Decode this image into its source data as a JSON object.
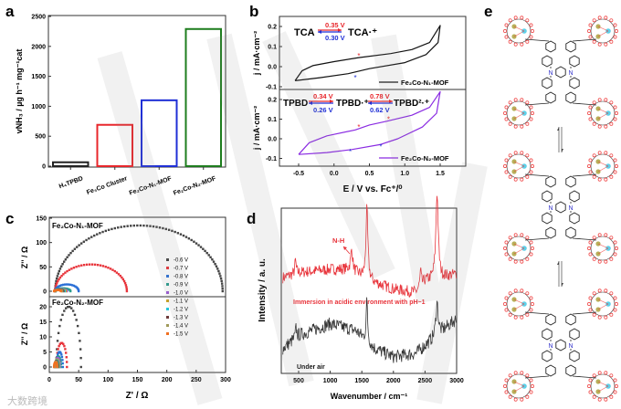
{
  "panels": {
    "a": "a",
    "b": "b",
    "c": "c",
    "d": "d",
    "e": "e"
  },
  "watermark": {
    "logo_text": "大数跨境"
  },
  "chart_data": [
    {
      "id": "a",
      "type": "bar",
      "categories": [
        "H₄TPBD",
        "Fe₃Co Cluster",
        "Fe₂Co-N₁-MOF",
        "Fe₂Co-N₂-MOF"
      ],
      "values": [
        65,
        690,
        1100,
        2290
      ],
      "colors": [
        "#222222",
        "#e8262b",
        "#1f2fd6",
        "#1e7d1e"
      ],
      "ylabel": "vNH₃ / µg h⁻¹ mg⁻¹cat",
      "ylim": [
        0,
        2500
      ],
      "yticks": [
        0,
        500,
        1000,
        1500,
        2000,
        2500
      ]
    },
    {
      "id": "b",
      "type": "line",
      "xlabel": "E / V vs. Fc⁺/⁰",
      "xlim": [
        -0.75,
        1.75
      ],
      "xticks": [
        -0.5,
        0.0,
        0.5,
        1.0,
        1.5
      ],
      "xtick_labels": [
        "-0.5",
        "0.0",
        "0.5",
        "1.0",
        "1.5"
      ],
      "subplots": [
        {
          "ylabel": "j / mA·cm⁻²",
          "ylim": [
            -0.11,
            0.25
          ],
          "yticks": [
            -0.1,
            0.0,
            0.1,
            0.2
          ],
          "ytick_labels": [
            "-0.1",
            "0.0",
            "0.1",
            "0.2"
          ],
          "series": [
            {
              "name": "Fe₂Co-N₁-MOF",
              "color": "#111111",
              "points": [
                [
                  -0.55,
                  -0.07
                ],
                [
                  -0.45,
                  -0.02
                ],
                [
                  -0.3,
                  0.005
                ],
                [
                  0,
                  0.025
                ],
                [
                  0.35,
                  0.045
                ],
                [
                  0.8,
                  0.065
                ],
                [
                  1.1,
                  0.085
                ],
                [
                  1.35,
                  0.12
                ],
                [
                  1.5,
                  0.205
                ],
                [
                  1.47,
                  0.12
                ],
                [
                  1.3,
                  0.06
                ],
                [
                  1.0,
                  0.02
                ],
                [
                  0.5,
                  -0.01
                ],
                [
                  0.2,
                  -0.035
                ],
                [
                  -0.2,
                  -0.055
                ],
                [
                  -0.55,
                  -0.07
                ]
              ]
            }
          ],
          "annotations": {
            "left": "TCA",
            "right": "TCA·⁺",
            "ox": "0.35 V",
            "red": "0.30 V"
          },
          "markers": [
            {
              "E": 0.35,
              "j": 0.055,
              "color": "#e8262b"
            },
            {
              "E": 0.3,
              "j": -0.055,
              "color": "#1f2fd6"
            }
          ]
        },
        {
          "ylabel": "j / mA·cm⁻²",
          "ylim": [
            -0.14,
            0.25
          ],
          "yticks": [
            -0.1,
            0.0,
            0.1,
            0.2
          ],
          "ytick_labels": [
            "-0.1",
            "0.0",
            "0.1",
            "0.2"
          ],
          "series": [
            {
              "name": "Fe₂Co-N₂-MOF",
              "color": "#8a2be2",
              "points": [
                [
                  -0.5,
                  -0.08
                ],
                [
                  -0.35,
                  -0.02
                ],
                [
                  -0.1,
                  0.015
                ],
                [
                  0.3,
                  0.045
                ],
                [
                  0.5,
                  0.07
                ],
                [
                  0.75,
                  0.09
                ],
                [
                  1.1,
                  0.12
                ],
                [
                  1.35,
                  0.16
                ],
                [
                  1.5,
                  0.24
                ],
                [
                  1.45,
                  0.13
                ],
                [
                  1.25,
                  0.06
                ],
                [
                  0.9,
                  0.0
                ],
                [
                  0.65,
                  -0.03
                ],
                [
                  0.25,
                  -0.055
                ],
                [
                  -0.1,
                  -0.07
                ],
                [
                  -0.5,
                  -0.08
                ]
              ]
            }
          ],
          "annotations": {
            "a": "TPBD",
            "b": "TPBD·⁺",
            "c": "TPBD²·⁺",
            "ox1": "0.34 V",
            "red1": "0.26 V",
            "ox2": "0.78 V",
            "red2": "0.62 V"
          },
          "markers": [
            {
              "E": 0.35,
              "j": 0.06,
              "color": "#e8262b"
            },
            {
              "E": 0.77,
              "j": 0.1,
              "color": "#e8262b"
            },
            {
              "E": 0.23,
              "j": -0.065,
              "color": "#1f2fd6"
            },
            {
              "E": 0.66,
              "j": -0.04,
              "color": "#1f2fd6"
            }
          ]
        }
      ]
    },
    {
      "id": "c",
      "type": "scatter",
      "xlabel": "Z' / Ω",
      "xlim": [
        0,
        300
      ],
      "xticks": [
        0,
        50,
        100,
        150,
        200,
        250,
        300
      ],
      "legend": [
        "-0.6 V",
        "-0.7 V",
        "-0.8 V",
        "-0.9 V",
        "-1.0 V",
        "-1.1 V",
        "-1.2 V",
        "-1.3 V",
        "-1.4 V",
        "-1.5 V"
      ],
      "colors": [
        "#444444",
        "#e8343b",
        "#2a6fd6",
        "#2a9d8f",
        "#9b59d6",
        "#c9a227",
        "#26c6da",
        "#6d3b3b",
        "#a09a5a",
        "#f07020"
      ],
      "subplots": [
        {
          "title": "Fe₂Co-N₁-MOF",
          "ylabel": "Z'' / Ω",
          "ylim": [
            -10,
            150
          ],
          "yticks": [
            0,
            50,
            100,
            150
          ],
          "arcs": [
            [
              10,
              295,
              135
            ],
            [
              10,
              132,
              55
            ],
            [
              10,
              50,
              14
            ],
            [
              10,
              36,
              6
            ],
            [
              10,
              30,
              4
            ],
            [
              10,
              28,
              3.5
            ],
            [
              10,
              26,
              3
            ],
            [
              10,
              24,
              3
            ],
            [
              10,
              22,
              2.5
            ],
            [
              8,
              20,
              2.5
            ]
          ]
        },
        {
          "title": "Fe₂Co-N₂-MOF",
          "ylabel": "Z'' / Ω",
          "ylim": [
            -2,
            23
          ],
          "yticks": [
            0,
            5,
            10,
            15,
            20
          ],
          "arcs": [
            [
              12,
              54,
              20
            ],
            [
              12,
              30,
              8
            ],
            [
              12,
              23,
              5
            ],
            [
              11,
              20,
              3.5
            ],
            [
              11,
              18,
              3
            ],
            [
              10,
              17,
              2.5
            ],
            [
              10,
              16,
              2.2
            ],
            [
              9,
              15,
              2
            ],
            [
              9,
              14,
              1.8
            ],
            [
              8,
              13,
              1.5
            ]
          ]
        }
      ]
    },
    {
      "id": "d",
      "type": "line",
      "xlabel": "Wavenumber / cm⁻¹",
      "ylabel": "Intensity / a. u.",
      "xlim": [
        250,
        3000
      ],
      "xticks": [
        500,
        1000,
        1500,
        2000,
        2500,
        3000
      ],
      "ylim": [
        0,
        10
      ],
      "series": [
        {
          "name": "Immersion in acidic environment with pH~1",
          "color": "#e8343b",
          "noise": 0.35,
          "baseline": [
            [
              250,
              5.8
            ],
            [
              500,
              6.1
            ],
            [
              1000,
              6.3
            ],
            [
              1300,
              6.3
            ],
            [
              1700,
              5.5
            ],
            [
              2000,
              5.1
            ],
            [
              2350,
              4.9
            ],
            [
              2500,
              5.6
            ],
            [
              3000,
              6.0
            ]
          ],
          "peaks": [
            [
              450,
              0.8,
              12
            ],
            [
              1340,
              1.3,
              18
            ],
            [
              1580,
              4.2,
              18
            ],
            [
              2430,
              0.9,
              12
            ],
            [
              2690,
              5.2,
              22
            ]
          ]
        },
        {
          "name": "Under air",
          "color": "#333333",
          "noise": 0.4,
          "baseline": [
            [
              250,
              1.5
            ],
            [
              500,
              2.3
            ],
            [
              1000,
              3.0
            ],
            [
              1400,
              2.6
            ],
            [
              1700,
              1.5
            ],
            [
              2000,
              1.0
            ],
            [
              2350,
              1.2
            ],
            [
              2600,
              2.0
            ],
            [
              3000,
              3.3
            ]
          ],
          "peaks": [
            [
              460,
              0.6,
              12
            ],
            [
              1580,
              2.4,
              14
            ],
            [
              2690,
              2.0,
              22
            ]
          ]
        }
      ],
      "annotation": "N-H"
    }
  ],
  "panel_e": {
    "units": 3
  }
}
